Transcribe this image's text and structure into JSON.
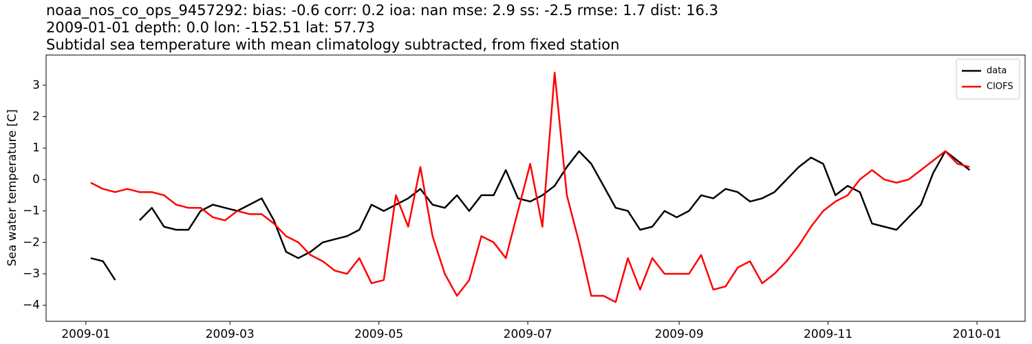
{
  "chart_data": {
    "type": "line",
    "title_lines": [
      "noaa_nos_co_ops_9457292: bias: -0.6  corr: 0.2  ioa: nan  mse: 2.9  ss: -2.5  rmse: 1.7  dist: 16.3",
      "2009-01-01 depth: 0.0 lon: -152.51 lat: 57.73",
      "Subtidal sea temperature with mean climatology subtracted, from fixed station"
    ],
    "y_label": "Sea water temperature [C]",
    "x": [
      2,
      7,
      12,
      17,
      22,
      27,
      32,
      37,
      42,
      47,
      52,
      57,
      62,
      67,
      72,
      77,
      82,
      87,
      92,
      97,
      102,
      107,
      112,
      117,
      122,
      127,
      132,
      137,
      142,
      147,
      152,
      157,
      162,
      167,
      172,
      177,
      182,
      187,
      192,
      197,
      202,
      207,
      212,
      217,
      222,
      227,
      232,
      237,
      242,
      247,
      252,
      257,
      262,
      267,
      272,
      277,
      282,
      287,
      292,
      297,
      302,
      307,
      312,
      317,
      322,
      327,
      332,
      337,
      342,
      347,
      352,
      357,
      362
    ],
    "series": [
      {
        "name": "data",
        "color": "#000000",
        "values": [
          -2.5,
          -2.6,
          -3.2,
          null,
          -1.3,
          -0.9,
          -1.5,
          -1.6,
          -1.6,
          -1.0,
          -0.8,
          -0.9,
          -1.0,
          -0.8,
          -0.6,
          -1.3,
          -2.3,
          -2.5,
          -2.3,
          -2.0,
          -1.9,
          -1.8,
          -1.6,
          -0.8,
          -1.0,
          -0.8,
          -0.6,
          -0.3,
          -0.8,
          -0.9,
          -0.5,
          -1.0,
          -0.5,
          -0.5,
          0.3,
          -0.6,
          -0.7,
          -0.5,
          -0.2,
          0.4,
          0.9,
          0.5,
          -0.2,
          -0.9,
          -1.0,
          -1.6,
          -1.5,
          -1.0,
          -1.2,
          -1.0,
          -0.5,
          -0.6,
          -0.3,
          -0.4,
          -0.7,
          -0.6,
          -0.4,
          0.0,
          0.4,
          0.7,
          0.5,
          -0.5,
          -0.2,
          -0.4,
          -1.4,
          -1.5,
          -1.6,
          -1.2,
          -0.8,
          0.2,
          0.9,
          0.6,
          0.3
        ]
      },
      {
        "name": "CIOFS",
        "color": "#ff0000",
        "values": [
          -0.1,
          -0.3,
          -0.4,
          -0.3,
          -0.4,
          -0.4,
          -0.5,
          -0.8,
          -0.9,
          -0.9,
          -1.2,
          -1.3,
          -1.0,
          -1.1,
          -1.1,
          -1.4,
          -1.8,
          -2.0,
          -2.4,
          -2.6,
          -2.9,
          -3.0,
          -2.5,
          -3.3,
          -3.2,
          -0.5,
          -1.5,
          0.4,
          -1.8,
          -3.0,
          -3.7,
          -3.2,
          -1.8,
          -2.0,
          -2.5,
          -1.0,
          0.5,
          -1.5,
          3.4,
          -0.5,
          -2.0,
          -3.7,
          -3.7,
          -3.9,
          -2.5,
          -3.5,
          -2.5,
          -3.0,
          -3.0,
          -3.0,
          -2.4,
          -3.5,
          -3.4,
          -2.8,
          -2.6,
          -3.3,
          -3.0,
          -2.6,
          -2.1,
          -1.5,
          -1.0,
          -0.7,
          -0.5,
          0.0,
          0.3,
          0.0,
          -0.1,
          0.0,
          0.3,
          0.6,
          0.9,
          0.5,
          0.4
        ]
      }
    ],
    "xlim": [
      -16.3,
      384.7
    ],
    "xticks": [
      {
        "value": 0,
        "label": "2009-01"
      },
      {
        "value": 59,
        "label": "2009-03"
      },
      {
        "value": 120,
        "label": "2009-05"
      },
      {
        "value": 181,
        "label": "2009-07"
      },
      {
        "value": 243,
        "label": "2009-09"
      },
      {
        "value": 304,
        "label": "2009-11"
      },
      {
        "value": 365,
        "label": "2010-01"
      }
    ],
    "ylim": [
      -4.51,
      3.96
    ],
    "yticks": [
      {
        "value": -4,
        "label": "−4"
      },
      {
        "value": -3,
        "label": "−3"
      },
      {
        "value": -2,
        "label": "−2"
      },
      {
        "value": -1,
        "label": "−1"
      },
      0,
      1,
      2,
      3
    ],
    "grid": false,
    "legend": "upper right"
  }
}
